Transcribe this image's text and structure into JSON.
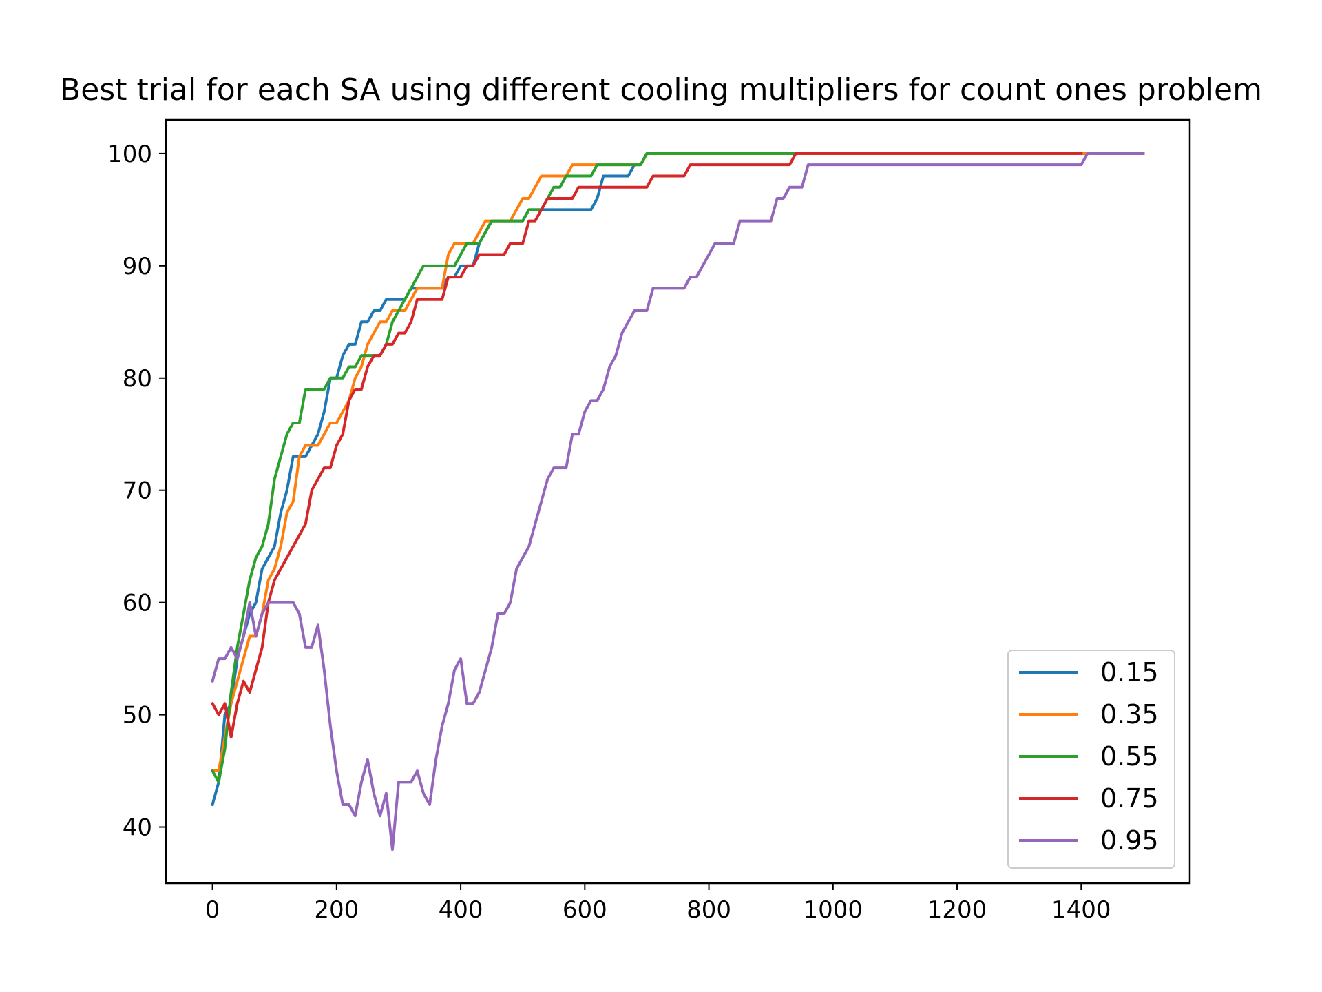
{
  "chart_data": {
    "type": "line",
    "title": "Best trial for each SA using different cooling multipliers for count ones problem",
    "xlabel": "",
    "ylabel": "",
    "xlim": [
      -75,
      1575
    ],
    "ylim": [
      35,
      103
    ],
    "x_ticks": [
      0,
      200,
      400,
      600,
      800,
      1000,
      1200,
      1400
    ],
    "y_ticks": [
      40,
      50,
      60,
      70,
      80,
      90,
      100
    ],
    "grid": false,
    "legend_position": "lower-right",
    "series": [
      {
        "name": "0.15",
        "color": "#1f77b4",
        "x": [
          0,
          10,
          20,
          30,
          40,
          50,
          60,
          70,
          80,
          90,
          100,
          110,
          120,
          130,
          140,
          150,
          160,
          170,
          180,
          190,
          200,
          210,
          220,
          230,
          240,
          250,
          260,
          270,
          280,
          290,
          300,
          310,
          320,
          330,
          340,
          350,
          360,
          370,
          380,
          390,
          400,
          410,
          420,
          430,
          440,
          450,
          460,
          470,
          480,
          490,
          500,
          510,
          520,
          530,
          540,
          550,
          560,
          570,
          580,
          590,
          600,
          610,
          620,
          630,
          640,
          650,
          660,
          670,
          680,
          690,
          700,
          1500
        ],
        "y": [
          42,
          44,
          50,
          51,
          55,
          57,
          59,
          60,
          63,
          64,
          65,
          68,
          70,
          73,
          73,
          73,
          74,
          75,
          77,
          80,
          80,
          82,
          83,
          83,
          85,
          85,
          86,
          86,
          87,
          87,
          87,
          87,
          88,
          88,
          88,
          88,
          88,
          88,
          89,
          89,
          90,
          90,
          90,
          92,
          93,
          94,
          94,
          94,
          94,
          94,
          94,
          95,
          95,
          95,
          95,
          95,
          95,
          95,
          95,
          95,
          95,
          95,
          96,
          98,
          98,
          98,
          98,
          98,
          99,
          99,
          100,
          100
        ]
      },
      {
        "name": "0.35",
        "color": "#ff7f0e",
        "x": [
          0,
          10,
          20,
          30,
          40,
          50,
          60,
          70,
          80,
          90,
          100,
          110,
          120,
          130,
          140,
          150,
          160,
          170,
          180,
          190,
          200,
          210,
          220,
          230,
          240,
          250,
          260,
          270,
          280,
          290,
          300,
          310,
          320,
          330,
          340,
          350,
          360,
          370,
          380,
          390,
          400,
          410,
          420,
          430,
          440,
          450,
          460,
          470,
          480,
          490,
          500,
          510,
          520,
          530,
          540,
          550,
          560,
          570,
          580,
          590,
          600,
          610,
          620,
          630,
          640,
          650,
          660,
          670,
          680,
          690,
          700,
          1500
        ],
        "y": [
          45,
          45,
          48,
          51,
          53,
          55,
          57,
          57,
          59,
          62,
          63,
          65,
          68,
          69,
          73,
          74,
          74,
          74,
          75,
          76,
          76,
          77,
          78,
          80,
          81,
          83,
          84,
          85,
          85,
          86,
          86,
          86,
          87,
          88,
          88,
          88,
          88,
          88,
          91,
          92,
          92,
          92,
          92,
          93,
          94,
          94,
          94,
          94,
          94,
          95,
          96,
          96,
          97,
          98,
          98,
          98,
          98,
          98,
          99,
          99,
          99,
          99,
          99,
          99,
          99,
          99,
          99,
          99,
          99,
          99,
          100,
          100
        ]
      },
      {
        "name": "0.55",
        "color": "#2ca02c",
        "x": [
          0,
          10,
          20,
          30,
          40,
          50,
          60,
          70,
          80,
          90,
          100,
          110,
          120,
          130,
          140,
          150,
          160,
          170,
          180,
          190,
          200,
          210,
          220,
          230,
          240,
          250,
          260,
          270,
          280,
          290,
          300,
          310,
          320,
          330,
          340,
          350,
          360,
          370,
          380,
          390,
          400,
          410,
          420,
          430,
          440,
          450,
          460,
          470,
          480,
          490,
          500,
          510,
          520,
          530,
          540,
          550,
          560,
          570,
          580,
          590,
          600,
          610,
          620,
          630,
          640,
          650,
          660,
          670,
          680,
          690,
          700,
          940
        ],
        "y": [
          45,
          44,
          47,
          52,
          56,
          59,
          62,
          64,
          65,
          67,
          71,
          73,
          75,
          76,
          76,
          79,
          79,
          79,
          79,
          80,
          80,
          80,
          81,
          81,
          82,
          82,
          82,
          82,
          83,
          85,
          86,
          87,
          88,
          89,
          90,
          90,
          90,
          90,
          90,
          90,
          91,
          92,
          92,
          92,
          93,
          94,
          94,
          94,
          94,
          94,
          94,
          95,
          95,
          95,
          96,
          97,
          97,
          98,
          98,
          98,
          98,
          98,
          99,
          99,
          99,
          99,
          99,
          99,
          99,
          99,
          100,
          100
        ]
      },
      {
        "name": "0.75",
        "color": "#d62728",
        "x": [
          0,
          10,
          20,
          30,
          40,
          50,
          60,
          70,
          80,
          90,
          100,
          110,
          120,
          130,
          140,
          150,
          160,
          170,
          180,
          190,
          200,
          210,
          220,
          230,
          240,
          250,
          260,
          270,
          280,
          290,
          300,
          310,
          320,
          330,
          340,
          350,
          360,
          370,
          380,
          390,
          400,
          410,
          420,
          430,
          440,
          450,
          460,
          470,
          480,
          490,
          500,
          510,
          520,
          530,
          540,
          550,
          560,
          570,
          580,
          590,
          600,
          610,
          620,
          630,
          640,
          650,
          660,
          670,
          680,
          690,
          700,
          710,
          720,
          730,
          740,
          750,
          760,
          770,
          780,
          790,
          800,
          810,
          820,
          830,
          840,
          850,
          860,
          870,
          880,
          890,
          900,
          910,
          920,
          930,
          940,
          1400
        ],
        "y": [
          51,
          50,
          51,
          48,
          51,
          53,
          52,
          54,
          56,
          60,
          62,
          63,
          64,
          65,
          66,
          67,
          70,
          71,
          72,
          72,
          74,
          75,
          78,
          79,
          79,
          81,
          82,
          82,
          83,
          83,
          84,
          84,
          85,
          87,
          87,
          87,
          87,
          87,
          89,
          89,
          89,
          90,
          90,
          91,
          91,
          91,
          91,
          91,
          92,
          92,
          92,
          94,
          94,
          95,
          96,
          96,
          96,
          96,
          96,
          97,
          97,
          97,
          97,
          97,
          97,
          97,
          97,
          97,
          97,
          97,
          97,
          98,
          98,
          98,
          98,
          98,
          98,
          99,
          99,
          99,
          99,
          99,
          99,
          99,
          99,
          99,
          99,
          99,
          99,
          99,
          99,
          99,
          99,
          99,
          100,
          100
        ]
      },
      {
        "name": "0.95",
        "color": "#9467bd",
        "x": [
          0,
          10,
          20,
          30,
          40,
          50,
          60,
          70,
          80,
          90,
          100,
          110,
          120,
          130,
          140,
          150,
          160,
          170,
          180,
          190,
          200,
          210,
          220,
          230,
          240,
          250,
          260,
          270,
          280,
          290,
          300,
          310,
          320,
          330,
          340,
          350,
          360,
          370,
          380,
          390,
          400,
          410,
          420,
          430,
          440,
          450,
          460,
          470,
          480,
          490,
          500,
          510,
          520,
          530,
          540,
          550,
          560,
          570,
          580,
          590,
          600,
          610,
          620,
          630,
          640,
          650,
          660,
          670,
          680,
          690,
          700,
          710,
          720,
          730,
          740,
          750,
          760,
          770,
          780,
          790,
          800,
          810,
          820,
          830,
          840,
          850,
          860,
          870,
          880,
          890,
          900,
          910,
          920,
          930,
          940,
          950,
          960,
          1400,
          1410,
          1500
        ],
        "y": [
          53,
          55,
          55,
          56,
          55,
          57,
          60,
          57,
          59,
          60,
          60,
          60,
          60,
          60,
          59,
          56,
          56,
          58,
          54,
          49,
          45,
          42,
          42,
          41,
          44,
          46,
          43,
          41,
          43,
          38,
          44,
          44,
          44,
          45,
          43,
          42,
          46,
          49,
          51,
          54,
          55,
          51,
          51,
          52,
          54,
          56,
          59,
          59,
          60,
          63,
          64,
          65,
          67,
          69,
          71,
          72,
          72,
          72,
          75,
          75,
          77,
          78,
          78,
          79,
          81,
          82,
          84,
          85,
          86,
          86,
          86,
          88,
          88,
          88,
          88,
          88,
          88,
          89,
          89,
          90,
          91,
          92,
          92,
          92,
          92,
          94,
          94,
          94,
          94,
          94,
          94,
          96,
          96,
          97,
          97,
          97,
          99,
          99,
          100,
          100
        ]
      }
    ]
  }
}
